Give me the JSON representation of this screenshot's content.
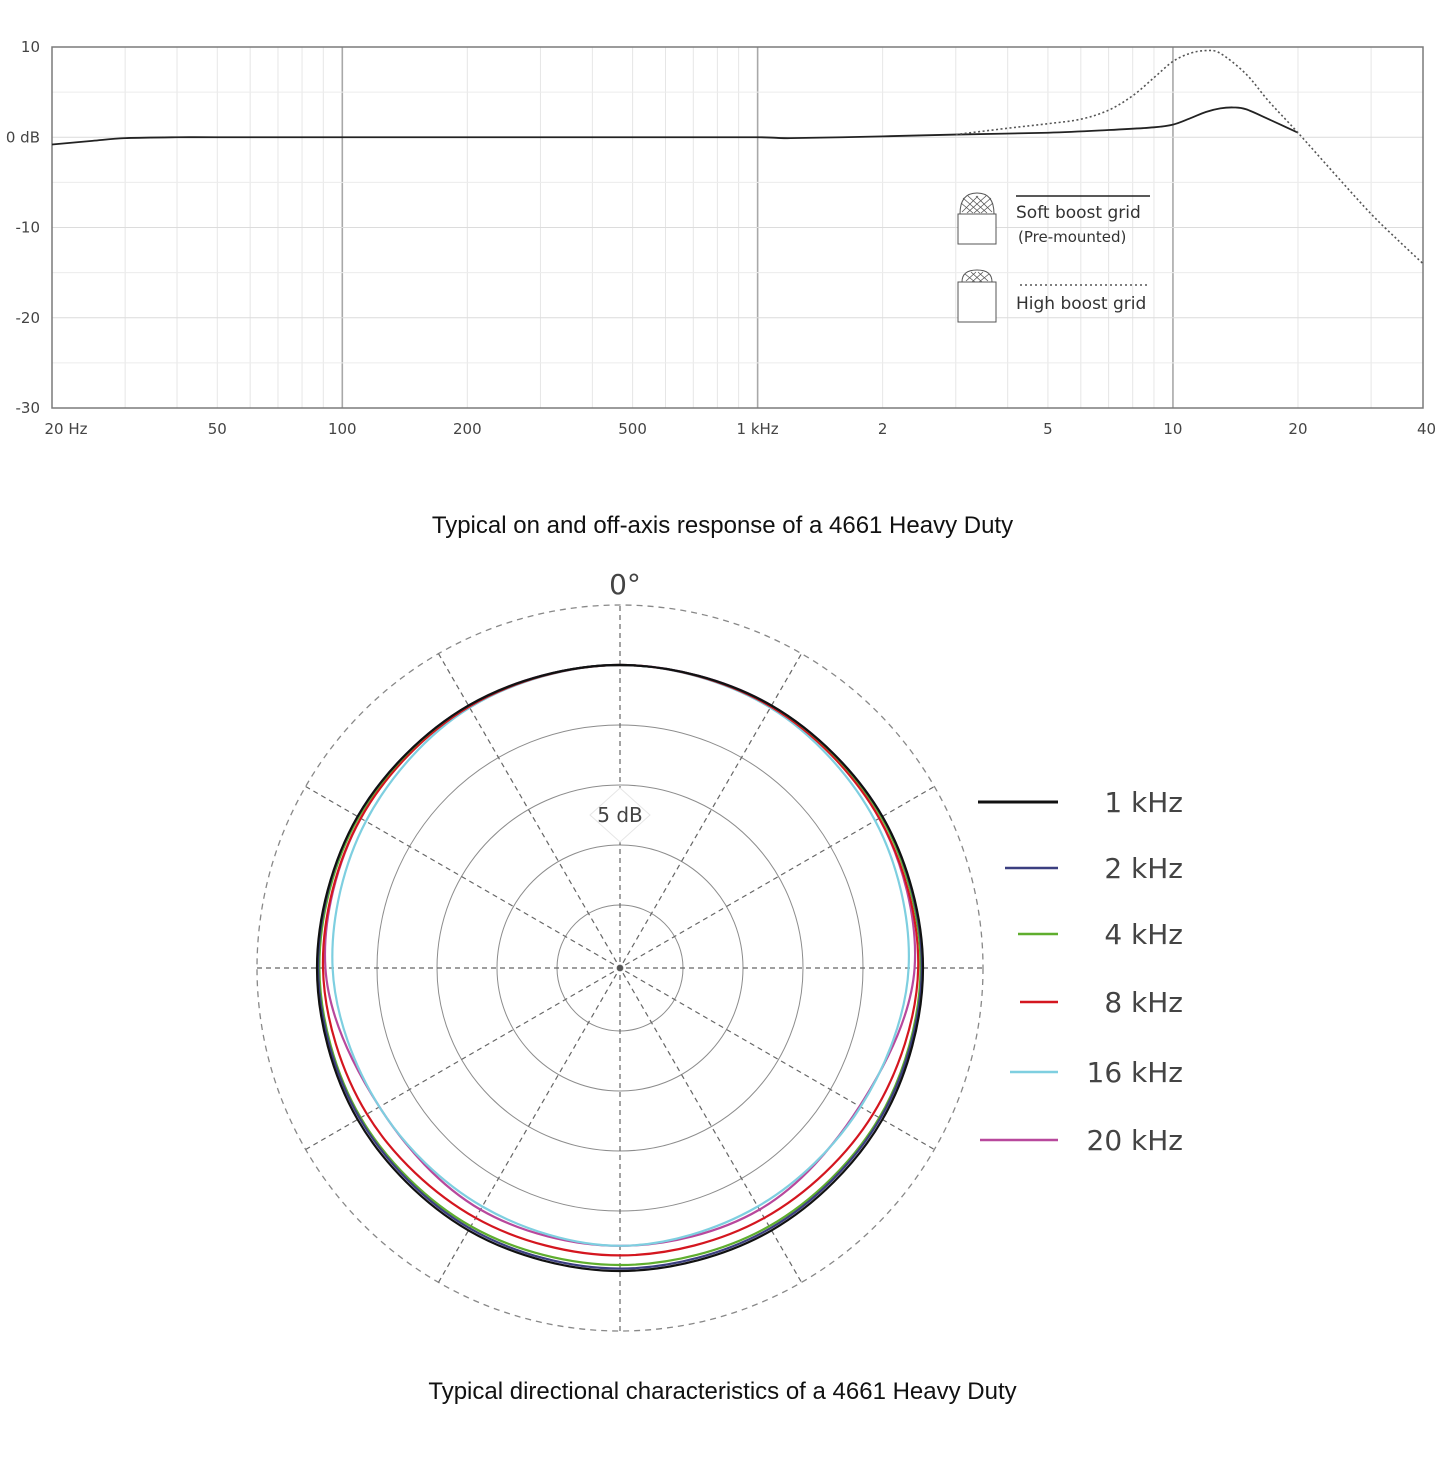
{
  "captions": {
    "frequency_response": "Typical on and off-axis response of a 4661 Heavy Duty",
    "polar": "Typical directional characteristics of a 4661 Heavy Duty"
  },
  "chart_data": [
    {
      "type": "line",
      "scale_x": "log",
      "xlim": [
        20,
        40000
      ],
      "ylim": [
        -30,
        10
      ],
      "grid": true,
      "x_tick_labels": [
        "20 Hz",
        "50",
        "100",
        "200",
        "500",
        "1 kHz",
        "2",
        "5",
        "10",
        "20",
        "40"
      ],
      "x_tick_values": [
        20,
        50,
        100,
        200,
        500,
        1000,
        2000,
        5000,
        10000,
        20000,
        40000
      ],
      "y_tick_labels": [
        "10",
        "0 dB",
        "-10",
        "-20",
        "-30"
      ],
      "y_tick_values": [
        10,
        0,
        -10,
        -20,
        -30
      ],
      "legend_position": "center-right",
      "series": [
        {
          "name": "Soft boost grid",
          "subname": "(Pre-mounted)",
          "style": "solid",
          "color": "#222222",
          "x": [
            20,
            25,
            30,
            40,
            50,
            100,
            200,
            500,
            1000,
            1200,
            2000,
            3000,
            5000,
            7000,
            9000,
            10000,
            11000,
            12000,
            13000,
            14000,
            15000,
            17000,
            20000
          ],
          "y": [
            -0.8,
            -0.4,
            -0.1,
            0,
            0,
            0,
            0,
            0,
            0,
            -0.1,
            0.1,
            0.3,
            0.5,
            0.8,
            1.1,
            1.4,
            2.1,
            2.8,
            3.2,
            3.3,
            3.1,
            2.0,
            0.5
          ]
        },
        {
          "name": "High boost grid",
          "style": "dotted",
          "color": "#555555",
          "x": [
            3000,
            4000,
            5000,
            6000,
            7000,
            8000,
            9000,
            10000,
            11000,
            12000,
            13000,
            15000,
            17000,
            20000,
            25000,
            30000,
            35000,
            40000
          ],
          "y": [
            0.3,
            1.0,
            1.5,
            2.0,
            3.0,
            4.6,
            6.6,
            8.4,
            9.3,
            9.6,
            9.3,
            7.0,
            4.0,
            0.5,
            -4.5,
            -8.5,
            -11.5,
            -14
          ]
        }
      ]
    },
    {
      "type": "polar",
      "title": "0°",
      "ring_label": "5 dB",
      "rings_db": [
        0,
        -5,
        -10,
        -15,
        -20,
        -25
      ],
      "angle_step_deg": 30,
      "legend_position": "right",
      "series": [
        {
          "name": "1 kHz",
          "color": "#111111",
          "angles": [
            0,
            30,
            60,
            90,
            120,
            150,
            180,
            210,
            240,
            270,
            300,
            330
          ],
          "db": [
            0,
            0,
            0,
            0,
            0,
            0,
            0,
            0,
            0,
            0,
            0,
            0
          ]
        },
        {
          "name": "2 kHz",
          "color": "#3b3f80",
          "angles": [
            0,
            30,
            60,
            90,
            120,
            150,
            180,
            210,
            240,
            270,
            300,
            330
          ],
          "db": [
            0,
            0,
            0,
            -0.1,
            -0.2,
            -0.2,
            -0.2,
            -0.2,
            -0.2,
            -0.1,
            0,
            0
          ]
        },
        {
          "name": "4 kHz",
          "color": "#5fae2e",
          "angles": [
            0,
            30,
            60,
            90,
            120,
            150,
            180,
            210,
            240,
            270,
            300,
            330
          ],
          "db": [
            0,
            0,
            -0.1,
            -0.2,
            -0.3,
            -0.4,
            -0.5,
            -0.4,
            -0.3,
            -0.2,
            -0.1,
            0
          ]
        },
        {
          "name": "8 kHz",
          "color": "#d4161f",
          "angles": [
            0,
            30,
            60,
            90,
            120,
            150,
            180,
            210,
            240,
            270,
            300,
            330
          ],
          "db": [
            0,
            -0.1,
            -0.3,
            -0.4,
            -0.9,
            -1.2,
            -1.3,
            -1.2,
            -0.9,
            -0.5,
            -0.3,
            -0.1
          ]
        },
        {
          "name": "16 kHz",
          "color": "#7ecfe0",
          "angles": [
            0,
            30,
            60,
            90,
            120,
            150,
            180,
            210,
            240,
            270,
            300,
            330
          ],
          "db": [
            0,
            -0.2,
            -0.7,
            -1.2,
            -2.1,
            -2.3,
            -2.1,
            -2.3,
            -2.1,
            -1.3,
            -0.8,
            -0.2
          ]
        },
        {
          "name": "20 kHz",
          "color": "#b8489c",
          "angles": [
            0,
            30,
            60,
            90,
            120,
            150,
            180,
            210,
            240,
            270,
            300,
            330
          ],
          "db": [
            0,
            0,
            -0.3,
            -0.7,
            -2.2,
            -2.0,
            -2.1,
            -2.0,
            -2.1,
            -0.7,
            -0.3,
            0
          ]
        }
      ]
    }
  ]
}
